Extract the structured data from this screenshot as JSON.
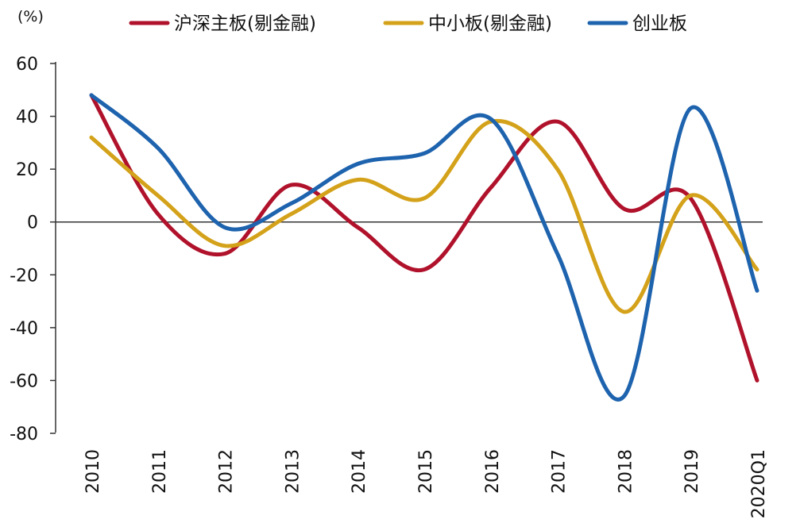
{
  "chart_data": {
    "type": "line",
    "unit_label": "(%)",
    "categories": [
      "2010",
      "2011",
      "2012",
      "2013",
      "2014",
      "2015",
      "2016",
      "2017",
      "2018",
      "2019",
      "2020Q1"
    ],
    "y_ticks": [
      60,
      40,
      20,
      0,
      -20,
      -40,
      -60,
      -80
    ],
    "ylim": [
      -80,
      60
    ],
    "grid": false,
    "legend_position": "top",
    "series": [
      {
        "name": "沪深主板(剔金融)",
        "color": "#b0122b",
        "values": [
          48,
          3,
          -12,
          14,
          -2,
          -18,
          13,
          38,
          5,
          9,
          -60
        ]
      },
      {
        "name": "中小板(剔金融)",
        "color": "#d4a21a",
        "values": [
          32,
          10,
          -9,
          3,
          16,
          9,
          38,
          20,
          -34,
          10,
          -18
        ]
      },
      {
        "name": "创业板",
        "color": "#1e63ae",
        "values": [
          48,
          28,
          -2,
          7,
          22,
          26,
          39,
          -12,
          -66,
          43,
          -26
        ]
      }
    ]
  }
}
